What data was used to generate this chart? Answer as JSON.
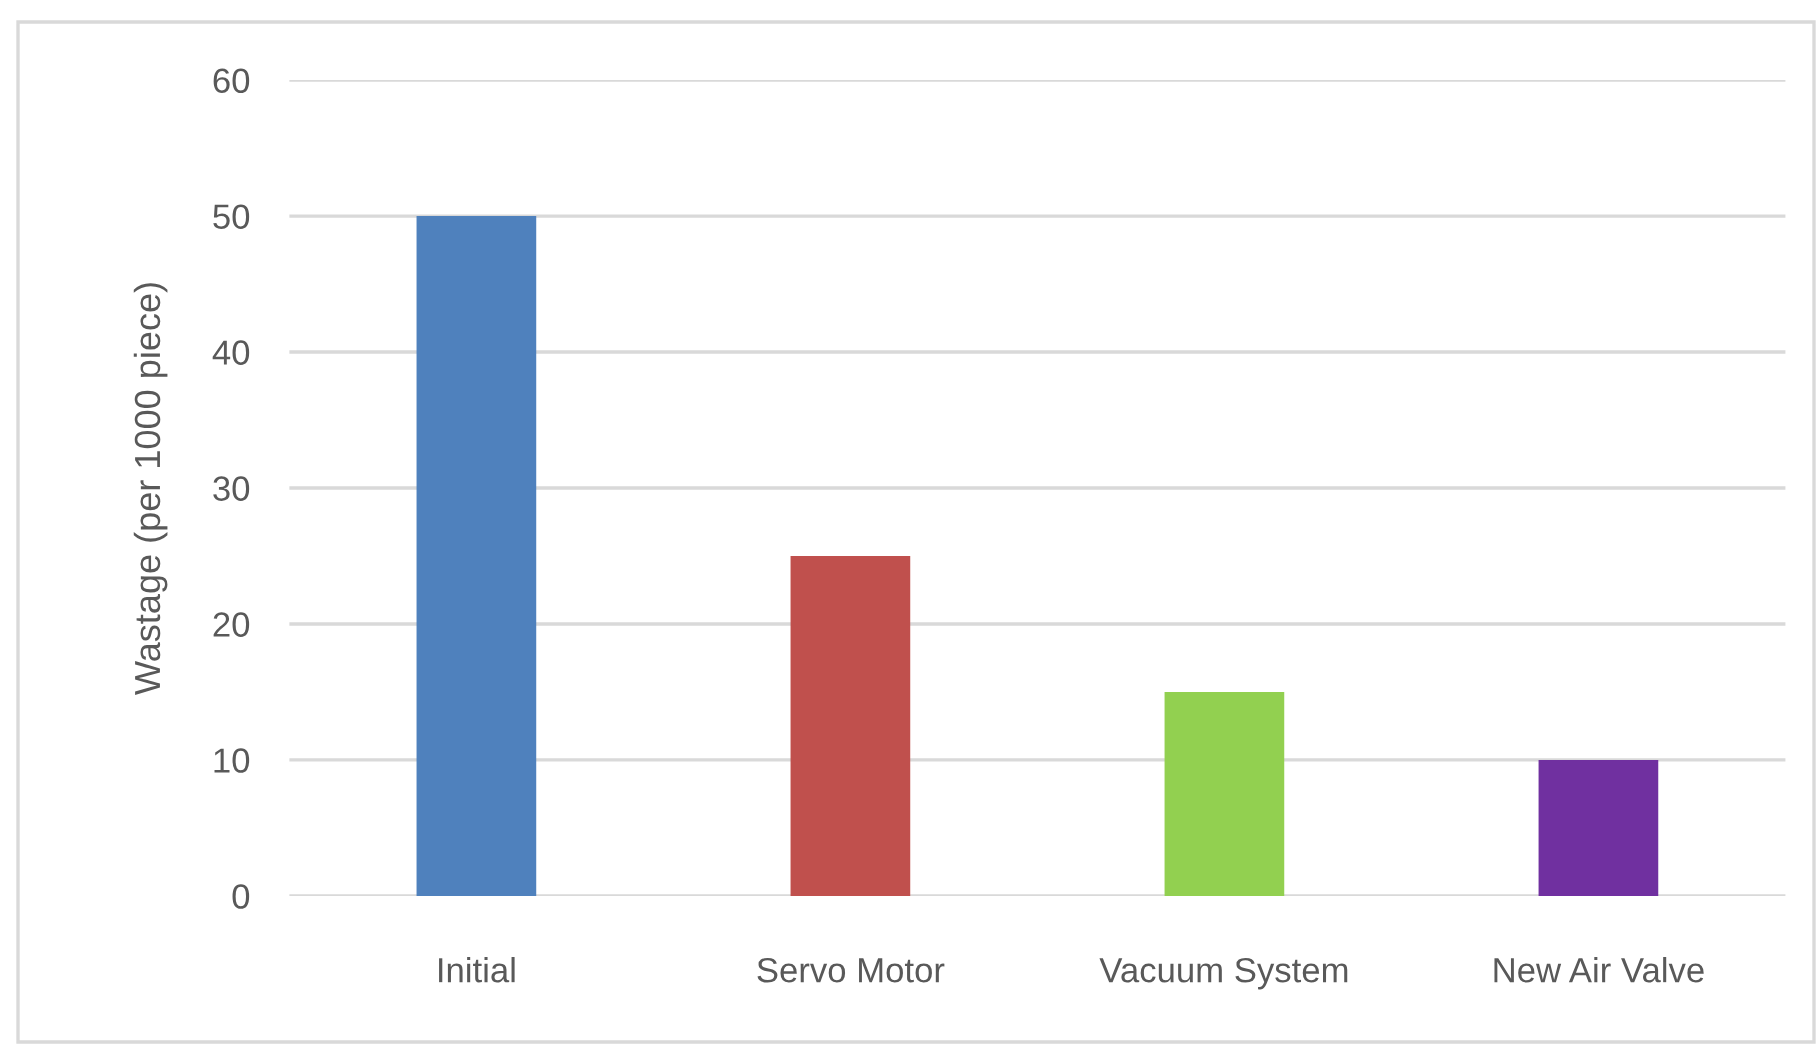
{
  "chart_data": {
    "type": "bar",
    "ylabel": "Wastage (per 1000 piece)",
    "categories": [
      "Initial",
      "Servo Motor",
      "Vacuum System",
      "New Air Valve"
    ],
    "values": [
      50,
      25,
      15,
      10
    ],
    "colors": [
      "#4f81bd",
      "#c0504d",
      "#92d050",
      "#7030a0"
    ],
    "ylim": [
      0,
      60
    ],
    "yticks": [
      0,
      10,
      20,
      30,
      40,
      50,
      60
    ],
    "grid": "y",
    "legend": false
  }
}
